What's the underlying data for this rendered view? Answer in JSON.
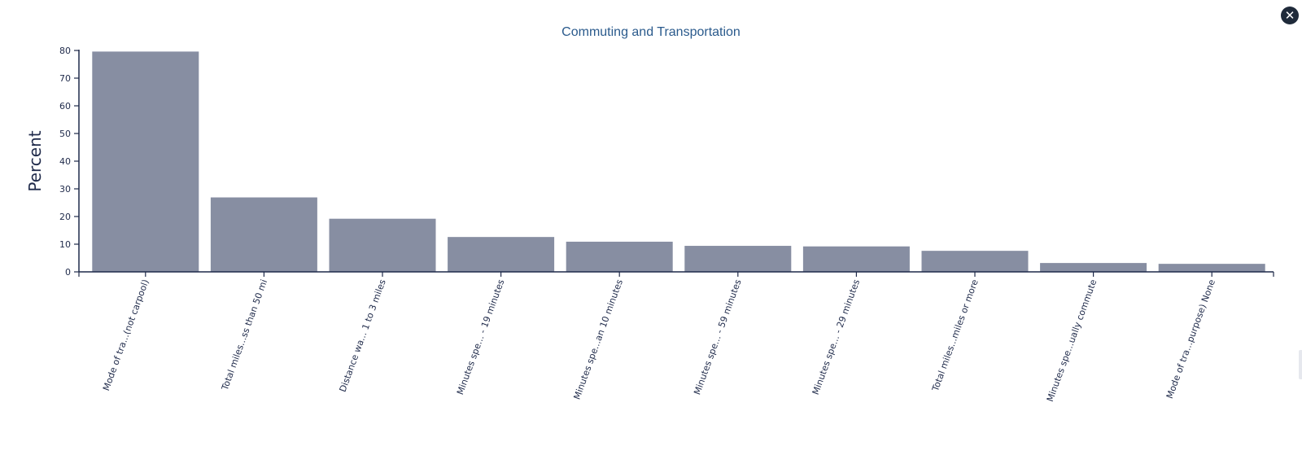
{
  "close_icon": "close-icon",
  "colors": {
    "bar": "#878ea2",
    "axis": "#1f2a4a",
    "title": "#2a5a8c",
    "text": "#1f2a4a",
    "close_bg": "#1f2a3a"
  },
  "chart_data": {
    "type": "bar",
    "title": "Commuting and Transportation",
    "xlabel": "",
    "ylabel": "Percent",
    "ylim": [
      0,
      80
    ],
    "yticks": [
      0,
      10,
      20,
      30,
      40,
      50,
      60,
      70,
      80
    ],
    "grid": false,
    "categories": [
      "Mode of tra...(not carpool)",
      "Total miles...ss than 50 mi",
      "Distance wa... 1 to 3 miles",
      "Minutes spe... - 19 minutes",
      "Minutes spe...an 10 minutes",
      "Minutes spe... - 59 minutes",
      "Minutes spe... - 29 minutes",
      "Total miles...miles or more",
      "Minutes spe...ually commute",
      "Mode of tra...purpose) None"
    ],
    "values": [
      79.6,
      26.9,
      19.2,
      12.6,
      10.9,
      9.4,
      9.2,
      7.6,
      3.2,
      2.9
    ]
  }
}
